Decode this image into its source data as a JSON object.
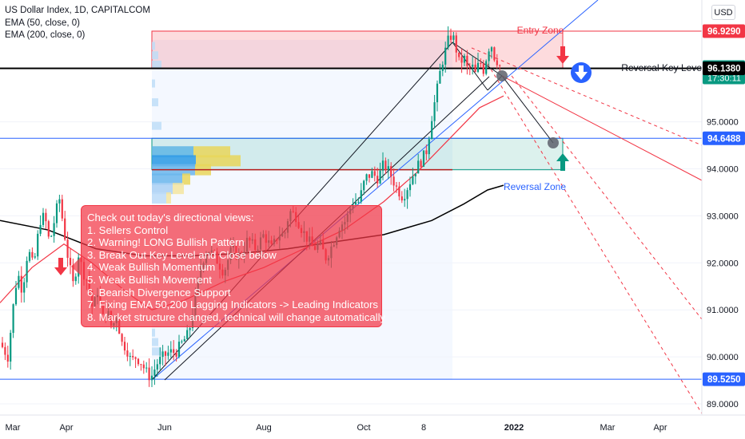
{
  "header": {
    "title": "US Dollar Index, 1D, CAPITALCOM",
    "indicators": [
      "EMA (50, close, 0)",
      "EMA (200, close, 0)"
    ],
    "currency_button": "USD"
  },
  "annotations": {
    "entry_zone": "Entry Zone",
    "reversal_key_level": "Reversal Key Level",
    "reversal_zone": "Reversal Zone",
    "note_lines": [
      "Check out today's directional views:",
      "1. Sellers Control",
      "2. Warning! LONG Bullish Pattern",
      "3. Break Out Key Level and Close below",
      "4. Weak Bullish Momentum",
      "5. Weak Bullish Movement",
      "6. Bearish Divergence Support",
      "7. Fixing EMA 50,200 Lagging Indicators -> Leading Indicators",
      "8. Market structure changed, technical will change automatically"
    ]
  },
  "price_badges": [
    {
      "label": "96.9290",
      "value": 96.929,
      "color": "#f23645",
      "text_color": "#ffffff"
    },
    {
      "label": "96.1726",
      "sub": "17:30:11",
      "value": 96.1726,
      "color": "#089981",
      "text_color": "#ffffff"
    },
    {
      "label": "96.1380",
      "value": 96.138,
      "color": "#000000",
      "text_color": "#ffffff"
    },
    {
      "label": "94.6488",
      "value": 94.6488,
      "color": "#2962ff",
      "text_color": "#ffffff"
    },
    {
      "label": "89.5250",
      "value": 89.525,
      "color": "#2962ff",
      "text_color": "#ffffff"
    }
  ],
  "colors": {
    "up": "#089981",
    "down": "#f23645",
    "ema50": "#f23645",
    "ema200": "#000000",
    "zone_blue": "#2962ff"
  },
  "chart_data": {
    "type": "candlestick",
    "symbol": "US Dollar Index",
    "timeframe": "1D",
    "source": "CAPITALCOM",
    "x_ticks": [
      "Mar",
      "Apr",
      "Jun",
      "Aug",
      "Oct",
      "8",
      "2022",
      "Mar",
      "Apr"
    ],
    "y_ticks": [
      89.0,
      90.0,
      91.0,
      92.0,
      93.0,
      94.0,
      95.0
    ],
    "y_tick_labels": [
      "89.0000",
      "90.0000",
      "91.0000",
      "92.0000",
      "93.0000",
      "94.0000",
      "95.0000"
    ],
    "ylim": [
      88.6,
      97.9
    ],
    "key_levels": {
      "entry_zone_top": 96.929,
      "reversal_key_level": 96.138,
      "reversal_zone_top": 94.6488,
      "reversal_zone_bottom": 93.98,
      "low": 89.525
    },
    "price_path": [
      [
        0,
        90.3
      ],
      [
        10,
        90.0
      ],
      [
        16,
        91.0
      ],
      [
        22,
        91.8
      ],
      [
        28,
        91.4
      ],
      [
        35,
        92.3
      ],
      [
        42,
        91.9
      ],
      [
        50,
        92.9
      ],
      [
        56,
        93.0
      ],
      [
        62,
        92.4
      ],
      [
        68,
        92.9
      ],
      [
        74,
        93.4
      ],
      [
        80,
        92.7
      ],
      [
        86,
        92.0
      ],
      [
        92,
        91.5
      ],
      [
        98,
        92.2
      ],
      [
        104,
        91.8
      ],
      [
        110,
        91.6
      ],
      [
        116,
        91.0
      ],
      [
        122,
        91.4
      ],
      [
        128,
        90.8
      ],
      [
        134,
        91.0
      ],
      [
        140,
        90.6
      ],
      [
        146,
        90.9
      ],
      [
        152,
        90.3
      ],
      [
        158,
        90.2
      ],
      [
        164,
        89.9
      ],
      [
        170,
        90.0
      ],
      [
        176,
        89.9
      ],
      [
        182,
        89.7
      ],
      [
        186,
        89.6
      ],
      [
        190,
        89.6
      ],
      [
        196,
        89.85
      ],
      [
        204,
        90.0
      ],
      [
        212,
        90.1
      ],
      [
        220,
        90.1
      ],
      [
        228,
        90.3
      ],
      [
        236,
        90.5
      ],
      [
        244,
        91.2
      ],
      [
        252,
        92.0
      ],
      [
        260,
        92.3
      ],
      [
        270,
        92.1
      ],
      [
        280,
        91.8
      ],
      [
        290,
        92.3
      ],
      [
        300,
        92.1
      ],
      [
        310,
        92.5
      ],
      [
        320,
        92.3
      ],
      [
        330,
        92.6
      ],
      [
        340,
        92.3
      ],
      [
        348,
        92.6
      ],
      [
        356,
        92.6
      ],
      [
        362,
        93.1
      ],
      [
        370,
        93.0
      ],
      [
        378,
        92.7
      ],
      [
        385,
        92.5
      ],
      [
        392,
        92.3
      ],
      [
        400,
        92.4
      ],
      [
        408,
        92.1
      ],
      [
        416,
        92.4
      ],
      [
        425,
        92.8
      ],
      [
        433,
        92.9
      ],
      [
        441,
        93.3
      ],
      [
        449,
        93.3
      ],
      [
        457,
        93.8
      ],
      [
        465,
        93.9
      ],
      [
        473,
        93.8
      ],
      [
        480,
        94.1
      ],
      [
        488,
        93.9
      ],
      [
        496,
        93.6
      ],
      [
        504,
        93.4
      ],
      [
        512,
        93.7
      ],
      [
        520,
        94.0
      ],
      [
        528,
        94.2
      ],
      [
        534,
        94.4
      ],
      [
        540,
        95.1
      ],
      [
        546,
        95.6
      ],
      [
        552,
        96.2
      ],
      [
        557,
        96.5
      ],
      [
        562,
        96.8
      ],
      [
        566,
        96.85
      ],
      [
        570,
        96.6
      ],
      [
        575,
        96.2
      ],
      [
        580,
        96.4
      ],
      [
        585,
        96.1
      ],
      [
        590,
        96.2
      ],
      [
        595,
        96.0
      ],
      [
        600,
        96.3
      ],
      [
        605,
        96.1
      ],
      [
        610,
        96.5
      ],
      [
        614,
        96.7
      ],
      [
        618,
        96.4
      ],
      [
        622,
        96.3
      ],
      [
        626,
        96.17
      ]
    ],
    "ema50": [
      [
        0,
        91.15
      ],
      [
        40,
        91.9
      ],
      [
        80,
        92.4
      ],
      [
        115,
        92.0
      ],
      [
        160,
        91.35
      ],
      [
        190,
        91.0
      ],
      [
        230,
        91.2
      ],
      [
        280,
        91.6
      ],
      [
        330,
        91.9
      ],
      [
        380,
        92.3
      ],
      [
        430,
        92.7
      ],
      [
        480,
        93.3
      ],
      [
        520,
        93.9
      ],
      [
        560,
        94.6
      ],
      [
        600,
        95.3
      ],
      [
        630,
        95.55
      ]
    ],
    "ema200": [
      [
        0,
        92.9
      ],
      [
        60,
        92.7
      ],
      [
        120,
        92.3
      ],
      [
        180,
        92.15
      ],
      [
        240,
        92.15
      ],
      [
        300,
        92.2
      ],
      [
        360,
        92.3
      ],
      [
        420,
        92.45
      ],
      [
        480,
        92.6
      ],
      [
        540,
        92.9
      ],
      [
        580,
        93.25
      ],
      [
        610,
        93.55
      ],
      [
        630,
        93.65
      ]
    ]
  }
}
